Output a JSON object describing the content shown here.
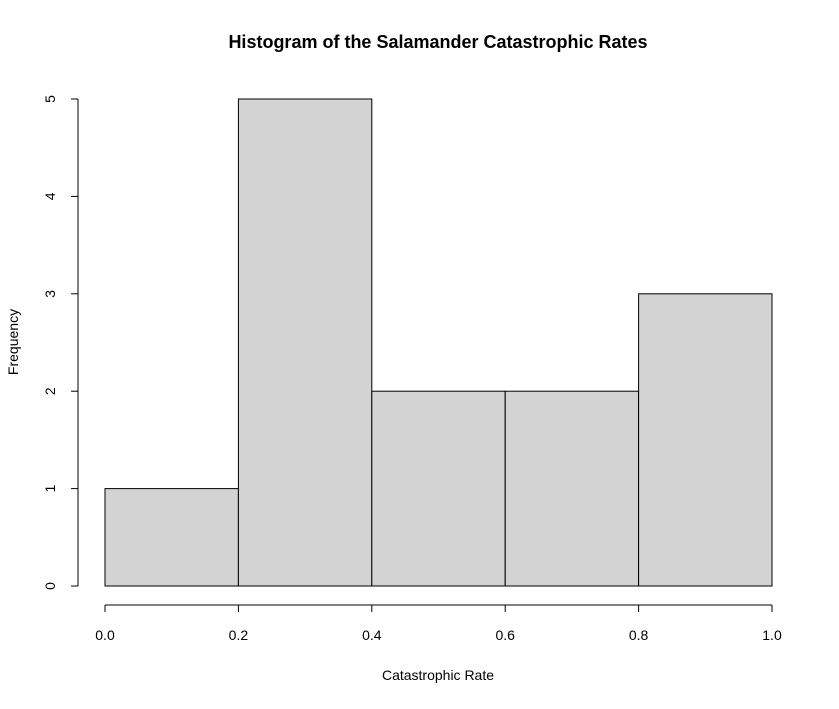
{
  "chart_data": {
    "type": "histogram",
    "title": "Histogram of the Salamander Catastrophic Rates",
    "xlabel": "Catastrophic Rate",
    "ylabel": "Frequency",
    "bins": [
      {
        "start": 0.0,
        "end": 0.2,
        "count": 1
      },
      {
        "start": 0.2,
        "end": 0.4,
        "count": 5
      },
      {
        "start": 0.4,
        "end": 0.6,
        "count": 2
      },
      {
        "start": 0.6,
        "end": 0.8,
        "count": 2
      },
      {
        "start": 0.8,
        "end": 1.0,
        "count": 3
      }
    ],
    "xlim": [
      0.0,
      1.0
    ],
    "ylim": [
      0,
      5
    ],
    "x_ticks": [
      "0.0",
      "0.2",
      "0.4",
      "0.6",
      "0.8",
      "1.0"
    ],
    "y_ticks": [
      "0",
      "1",
      "2",
      "3",
      "4",
      "5"
    ],
    "grid": false,
    "bar_fill": "#d3d3d3",
    "bar_stroke": "#000000"
  }
}
